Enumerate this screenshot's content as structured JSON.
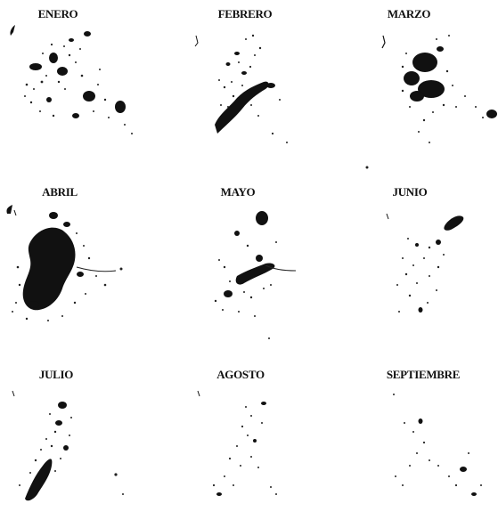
{
  "colors": {
    "background": "#ffffff",
    "ink": "#111111"
  },
  "panels": [
    {
      "month": "ENERO"
    },
    {
      "month": "FEBRERO"
    },
    {
      "month": "MARZO"
    },
    {
      "month": "ABRIL"
    },
    {
      "month": "MAYO"
    },
    {
      "month": "JUNIO"
    },
    {
      "month": "JULIO"
    },
    {
      "month": "AGOSTO"
    },
    {
      "month": "SEPTIEMBRE"
    }
  ]
}
